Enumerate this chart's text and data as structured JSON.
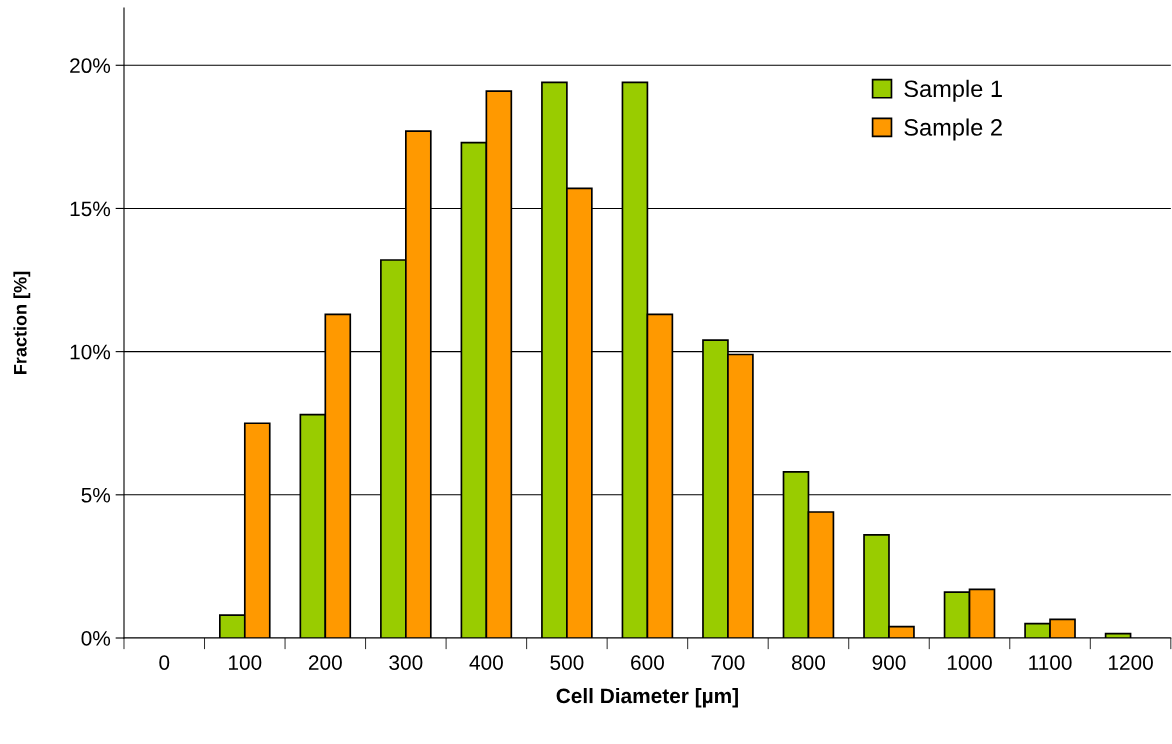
{
  "chart_data": {
    "type": "bar",
    "xlabel": "Cell Diameter [µm]",
    "ylabel": "Fraction [%]",
    "categories": [
      "0",
      "100",
      "200",
      "300",
      "400",
      "500",
      "600",
      "700",
      "800",
      "900",
      "1000",
      "1100",
      "1200"
    ],
    "series": [
      {
        "name": "Sample 1",
        "color": "#99cc00",
        "values": [
          0,
          0.8,
          7.8,
          13.2,
          17.3,
          19.4,
          19.4,
          10.4,
          5.8,
          3.6,
          1.6,
          0.5,
          0.15
        ]
      },
      {
        "name": "Sample 2",
        "color": "#ff9900",
        "values": [
          0,
          7.5,
          11.3,
          17.7,
          19.1,
          15.7,
          11.3,
          9.9,
          4.4,
          0.4,
          1.7,
          0.65,
          0
        ]
      }
    ],
    "ylim": [
      0,
      22
    ],
    "yticks": [
      {
        "value": 0,
        "label": "0%"
      },
      {
        "value": 5,
        "label": "5%"
      },
      {
        "value": 10,
        "label": "10%"
      },
      {
        "value": 15,
        "label": "15%"
      },
      {
        "value": 20,
        "label": "20%"
      }
    ],
    "grid": "y",
    "legend": "top right"
  }
}
